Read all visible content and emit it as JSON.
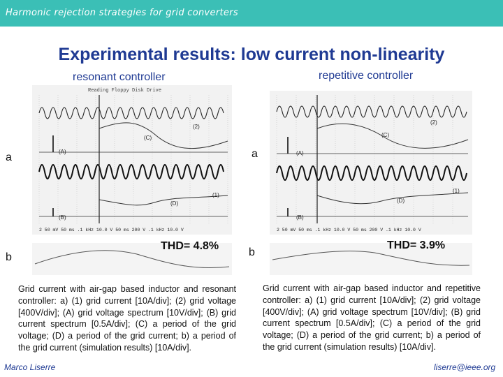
{
  "header": {
    "title": "Harmonic rejection strategies for grid converters"
  },
  "slide_title": "Experimental results: low current non-linearity",
  "left": {
    "heading": "resonant controller",
    "scope_banner": "Reading Floppy Disk Drive",
    "panel_a_label": "a",
    "panel_b_label": "b",
    "thd": "THD= 4.8%",
    "trace_labels": [
      "(2)",
      "(C)",
      "(A)",
      "(1)",
      "(D)",
      "(B)"
    ],
    "readout": "2  50 mV  50 ms  .1 kHz 10.0 V  50 ms  200 V  .1 kHz 10.0 V",
    "caption": "Grid current with air-gap based inductor and resonant controller: a) (1) grid current [10A/div]; (2) grid voltage [400V/div]; (A) grid voltage spectrum [10V/div]; (B) grid current spectrum [0.5A/div]; (C) a period of the grid voltage; (D) a period of the grid current; b) a period of the grid current (simulation results) [10A/div]."
  },
  "right": {
    "heading": "repetitive controller",
    "panel_a_label": "a",
    "panel_b_label": "b",
    "thd": "THD= 3.9%",
    "trace_labels": [
      "(2)",
      "(C)",
      "(A)",
      "(1)",
      "(D)",
      "(B)"
    ],
    "readout": "2  50 mV  50 ms  .1 kHz 10.0 V  50 ms  200 V  .1 kHz 10.0 V",
    "caption": "Grid current with air-gap based inductor and repetitive controller: a) (1) grid current [10A/div]; (2) grid voltage [400V/div]; (A) grid voltage spectrum [10V/div]; (B) grid current spectrum [0.5A/div]; (C) a period of the grid voltage; (D) a period of the grid current; b) a period of the grid current (simulation results) [10A/div]."
  },
  "footer": {
    "author": "Marco Liserre",
    "email": "liserre@ieee.org"
  }
}
